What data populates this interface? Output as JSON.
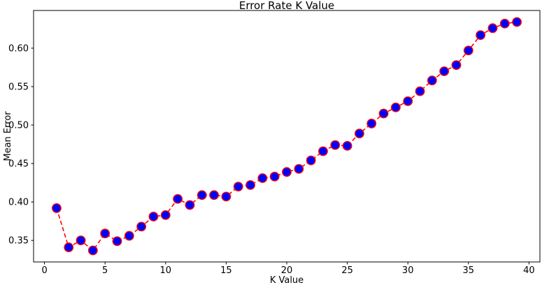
{
  "figure": {
    "kind": "matplotlib-line-plot",
    "background_color": "#ffffff",
    "spine_color": "#000000",
    "text_color": "#000000"
  },
  "chart_data": {
    "type": "line",
    "title": "Error Rate K Value",
    "xlabel": "K Value",
    "ylabel": "Mean Error",
    "x": [
      1,
      2,
      3,
      4,
      5,
      6,
      7,
      8,
      9,
      10,
      11,
      12,
      13,
      14,
      15,
      16,
      17,
      18,
      19,
      20,
      21,
      22,
      23,
      24,
      25,
      26,
      27,
      28,
      29,
      30,
      31,
      32,
      33,
      34,
      35,
      36,
      37,
      38,
      39
    ],
    "values": [
      0.392,
      0.341,
      0.35,
      0.337,
      0.359,
      0.349,
      0.356,
      0.368,
      0.381,
      0.383,
      0.404,
      0.396,
      0.409,
      0.409,
      0.407,
      0.42,
      0.422,
      0.431,
      0.433,
      0.439,
      0.443,
      0.454,
      0.466,
      0.474,
      0.473,
      0.489,
      0.502,
      0.515,
      0.523,
      0.531,
      0.544,
      0.558,
      0.57,
      0.578,
      0.597,
      0.617,
      0.626,
      0.632,
      0.634
    ],
    "xlim": [
      -0.9,
      40.9
    ],
    "ylim": [
      0.322,
      0.649
    ],
    "xticks": [
      0,
      5,
      10,
      15,
      20,
      25,
      30,
      35,
      40
    ],
    "xtick_labels": [
      "0",
      "5",
      "10",
      "15",
      "20",
      "25",
      "30",
      "35",
      "40"
    ],
    "yticks": [
      0.35,
      0.4,
      0.45,
      0.5,
      0.55,
      0.6
    ],
    "ytick_labels": [
      "0.35",
      "0.40",
      "0.45",
      "0.50",
      "0.55",
      "0.60"
    ],
    "grid": false,
    "legend": null,
    "style": {
      "line_color": "#ff0000",
      "line_style": "dashed",
      "line_width": 1.6,
      "marker": "o",
      "marker_face_color": "#0000ff",
      "marker_edge_color": "#ff0000",
      "marker_radius": 6.2
    }
  }
}
